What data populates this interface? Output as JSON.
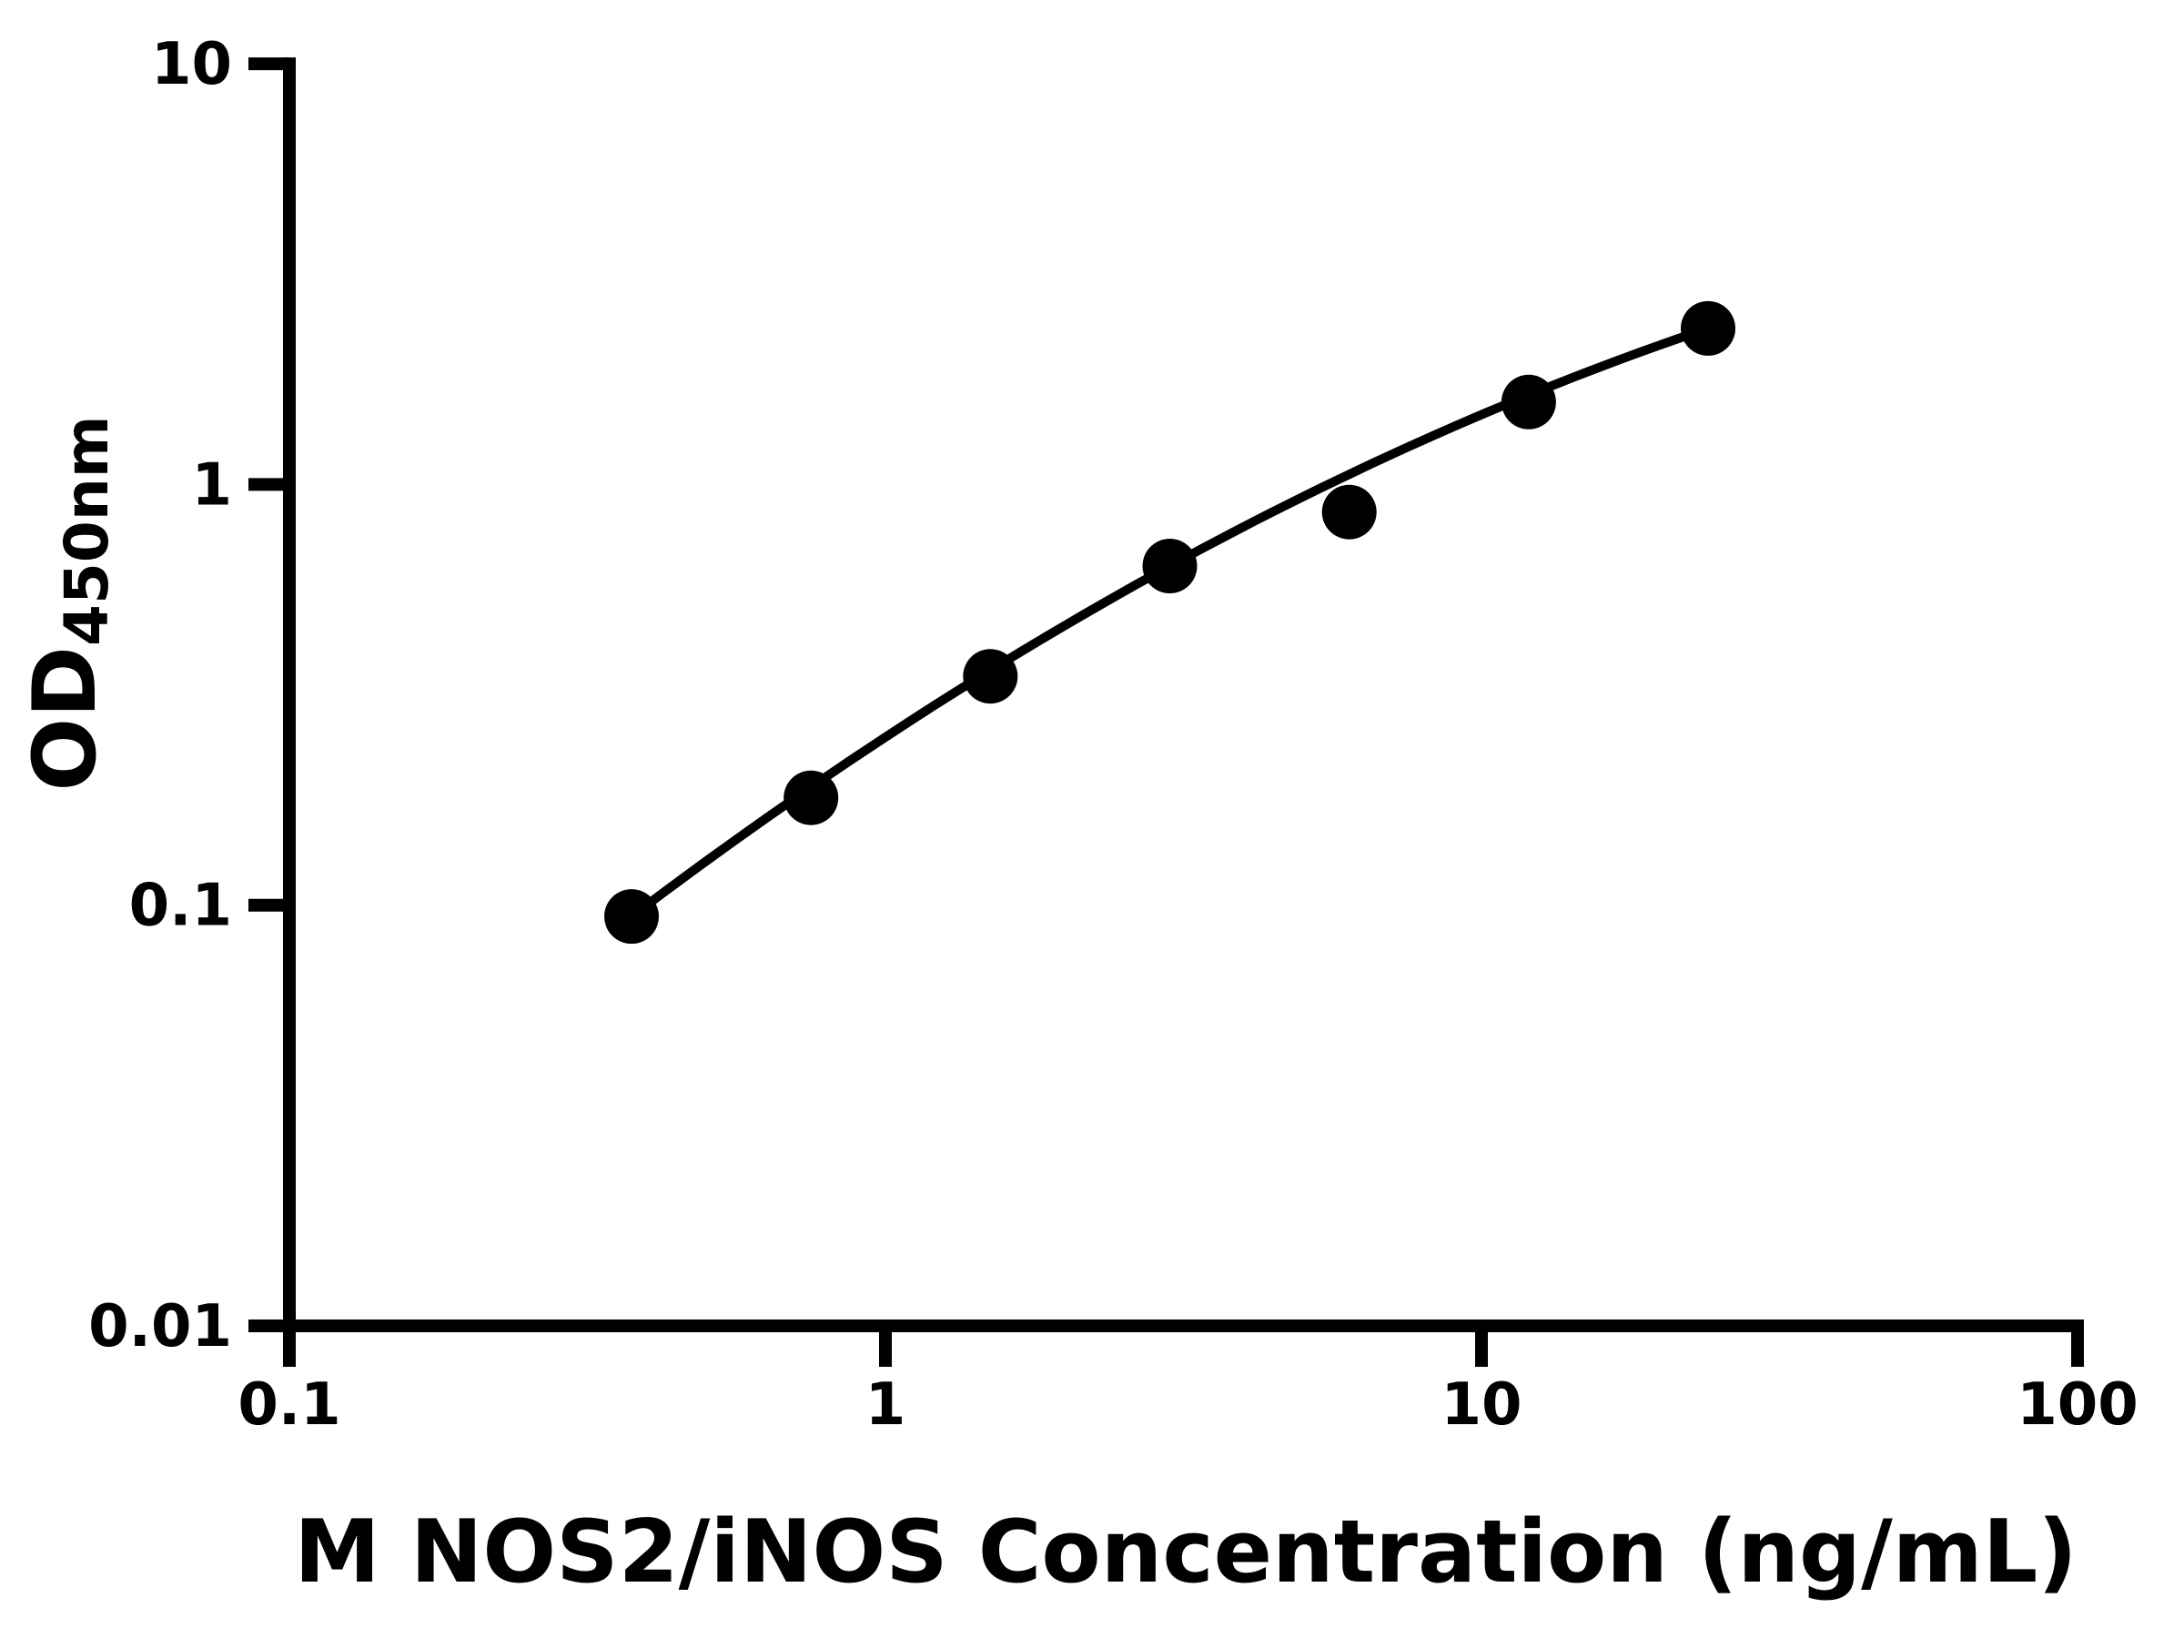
{
  "chart_data": {
    "type": "scatter",
    "title": "",
    "xlabel": "M NOS2/iNOS Concentration (ng/mL)",
    "ylabel_main": "OD",
    "ylabel_subscript": "450nm",
    "x_scale": "log",
    "y_scale": "log",
    "xlim": [
      0.1,
      100
    ],
    "ylim": [
      0.01,
      10
    ],
    "grid": false,
    "legend": "none",
    "x_ticks": {
      "values": [
        0.1,
        1,
        10,
        100
      ],
      "labels": [
        "0.1",
        "1",
        "10",
        "100"
      ]
    },
    "y_ticks": {
      "values": [
        10,
        1,
        0.1,
        0.01
      ],
      "labels": [
        "10",
        "1",
        "0.1",
        "0.01"
      ]
    },
    "series": [
      {
        "marker": "filled-circle",
        "line": "smooth-fit",
        "points": [
          {
            "x": 0.375,
            "y": 0.094
          },
          {
            "x": 0.75,
            "y": 0.18
          },
          {
            "x": 1.5,
            "y": 0.35
          },
          {
            "x": 3,
            "y": 0.64
          },
          {
            "x": 6,
            "y": 0.86
          },
          {
            "x": 12,
            "y": 1.57
          },
          {
            "x": 24,
            "y": 2.35
          }
        ]
      }
    ],
    "colors": {
      "ink": "#000000",
      "background": "#ffffff"
    }
  }
}
